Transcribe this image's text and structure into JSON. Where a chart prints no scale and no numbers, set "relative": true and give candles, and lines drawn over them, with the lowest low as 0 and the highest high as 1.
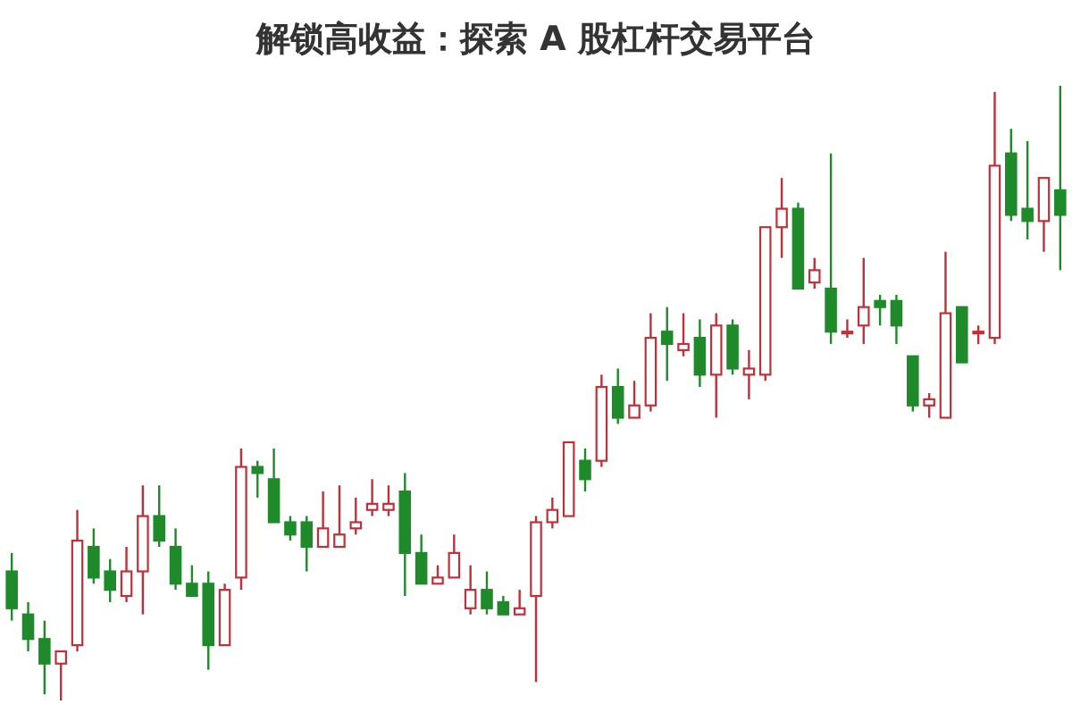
{
  "chart_data": {
    "type": "candlestick",
    "title": "解锁高收益：探索 A 股杠杆交易平台",
    "relative": true,
    "categories": [
      null,
      null,
      null,
      null,
      null,
      null,
      null,
      null,
      null,
      null,
      null,
      null,
      null,
      null,
      null,
      null,
      null,
      null,
      null,
      null,
      null,
      null,
      null,
      null,
      null,
      null,
      null,
      null,
      null,
      null,
      null,
      null,
      null,
      null,
      null,
      null,
      null,
      null,
      null,
      null,
      null,
      null,
      null,
      null,
      null,
      null,
      null,
      null,
      null,
      null,
      null,
      null,
      null,
      null,
      null,
      null,
      null,
      null,
      null,
      null,
      null,
      null,
      null,
      null,
      null
    ],
    "ohlc": [
      [
        0.21,
        0.24,
        0.13,
        0.15
      ],
      [
        0.14,
        0.16,
        0.08,
        0.1
      ],
      [
        0.1,
        0.13,
        0.01,
        0.06
      ],
      [
        0.06,
        0.08,
        0,
        0.08
      ],
      [
        0.09,
        0.31,
        0.08,
        0.26
      ],
      [
        0.25,
        0.28,
        0.19,
        0.2
      ],
      [
        0.21,
        0.23,
        0.16,
        0.18
      ],
      [
        0.17,
        0.25,
        0.16,
        0.21
      ],
      [
        0.21,
        0.35,
        0.14,
        0.3
      ],
      [
        0.3,
        0.35,
        0.25,
        0.26
      ],
      [
        0.25,
        0.28,
        0.18,
        0.19
      ],
      [
        0.19,
        0.22,
        0.17,
        0.17
      ],
      [
        0.19,
        0.21,
        0.05,
        0.09
      ],
      [
        0.09,
        0.19,
        0.09,
        0.18
      ],
      [
        0.2,
        0.41,
        0.18,
        0.38
      ],
      [
        0.38,
        0.39,
        0.33,
        0.37
      ],
      [
        0.36,
        0.41,
        0.29,
        0.29
      ],
      [
        0.29,
        0.3,
        0.26,
        0.27
      ],
      [
        0.29,
        0.3,
        0.21,
        0.25
      ],
      [
        0.25,
        0.34,
        0.25,
        0.28
      ],
      [
        0.25,
        0.35,
        0.25,
        0.27
      ],
      [
        0.28,
        0.33,
        0.27,
        0.29
      ],
      [
        0.31,
        0.36,
        0.3,
        0.32
      ],
      [
        0.31,
        0.35,
        0.3,
        0.32
      ],
      [
        0.34,
        0.37,
        0.17,
        0.24
      ],
      [
        0.24,
        0.27,
        0.19,
        0.19
      ],
      [
        0.19,
        0.22,
        0.19,
        0.2
      ],
      [
        0.2,
        0.27,
        0.2,
        0.24
      ],
      [
        0.15,
        0.22,
        0.14,
        0.18
      ],
      [
        0.18,
        0.21,
        0.14,
        0.15
      ],
      [
        0.16,
        0.17,
        0.14,
        0.14
      ],
      [
        0.14,
        0.18,
        0.14,
        0.15
      ],
      [
        0.17,
        0.3,
        0.03,
        0.29
      ],
      [
        0.29,
        0.33,
        0.28,
        0.31
      ],
      [
        0.3,
        0.42,
        0.3,
        0.42
      ],
      [
        0.39,
        0.41,
        0.34,
        0.36
      ],
      [
        0.39,
        0.53,
        0.38,
        0.51
      ],
      [
        0.51,
        0.54,
        0.45,
        0.46
      ],
      [
        0.46,
        0.52,
        0.46,
        0.48
      ],
      [
        0.48,
        0.63,
        0.47,
        0.59
      ],
      [
        0.6,
        0.64,
        0.52,
        0.58
      ],
      [
        0.57,
        0.63,
        0.56,
        0.58
      ],
      [
        0.59,
        0.62,
        0.51,
        0.53
      ],
      [
        0.53,
        0.63,
        0.46,
        0.61
      ],
      [
        0.61,
        0.62,
        0.53,
        0.54
      ],
      [
        0.53,
        0.57,
        0.49,
        0.54
      ],
      [
        0.53,
        0.77,
        0.52,
        0.77
      ],
      [
        0.77,
        0.85,
        0.72,
        0.8
      ],
      [
        0.8,
        0.81,
        0.67,
        0.67
      ],
      [
        0.68,
        0.72,
        0.67,
        0.7
      ],
      [
        0.67,
        0.89,
        0.58,
        0.6
      ],
      [
        0.6,
        0.62,
        0.59,
        0.6
      ],
      [
        0.61,
        0.72,
        0.58,
        0.64
      ],
      [
        0.65,
        0.66,
        0.61,
        0.64
      ],
      [
        0.65,
        0.66,
        0.58,
        0.61
      ],
      [
        0.56,
        0.56,
        0.47,
        0.48
      ],
      [
        0.48,
        0.5,
        0.46,
        0.49
      ],
      [
        0.46,
        0.73,
        0.46,
        0.63
      ],
      [
        0.64,
        0.64,
        0.55,
        0.55
      ],
      [
        0.6,
        0.61,
        0.58,
        0.6
      ],
      [
        0.59,
        0.99,
        0.58,
        0.87
      ],
      [
        0.89,
        0.93,
        0.78,
        0.79
      ],
      [
        0.8,
        0.91,
        0.75,
        0.78
      ],
      [
        0.78,
        0.85,
        0.73,
        0.85
      ],
      [
        0.83,
        1,
        0.7,
        0.79
      ]
    ]
  }
}
